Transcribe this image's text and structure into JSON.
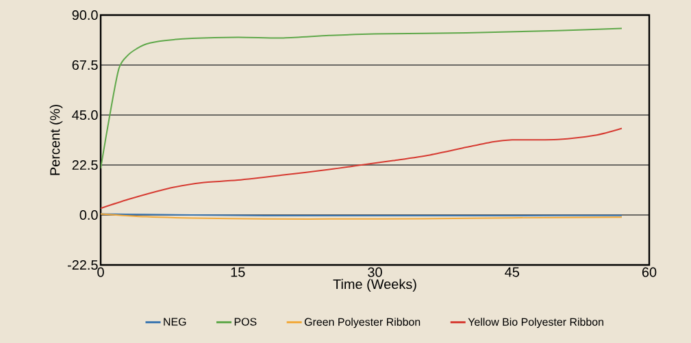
{
  "chart_data": {
    "type": "line",
    "xlabel": "Time (Weeks)",
    "ylabel": "Percent (%)",
    "xlim": [
      0,
      60
    ],
    "xticks": [
      0,
      15,
      30,
      45,
      60
    ],
    "ylim": [
      -22.5,
      90
    ],
    "yticks": [
      {
        "value": -22.5,
        "label": "-22.5"
      },
      {
        "value": 0,
        "label": "0.0"
      },
      {
        "value": 22.5,
        "label": "22.5"
      },
      {
        "value": 45,
        "label": "45.0"
      },
      {
        "value": 67.5,
        "label": "67.5"
      },
      {
        "value": 90,
        "label": "90.0"
      }
    ],
    "grid": "y",
    "legend": "bottom",
    "marker": "none",
    "line_style": "solid",
    "series": [
      {
        "name": "NEG",
        "color": "#3a75b0",
        "x": [
          0,
          5,
          10,
          18,
          25,
          35,
          45,
          57
        ],
        "values": [
          0.5,
          0.2,
          0,
          -0.3,
          -0.3,
          -0.3,
          -0.3,
          -0.2
        ]
      },
      {
        "name": "POS",
        "color": "#5fa84a",
        "x": [
          0,
          1,
          2,
          3,
          4,
          5,
          7,
          10,
          15,
          20,
          25,
          30,
          40,
          50,
          57
        ],
        "values": [
          21,
          45,
          66,
          72,
          75,
          77,
          78.5,
          79.5,
          80,
          79.7,
          80.8,
          81.5,
          82,
          83,
          84
        ]
      },
      {
        "name": "Green Polyester Ribbon",
        "color": "#f2a93a",
        "x": [
          0,
          5,
          10,
          18,
          25,
          35,
          45,
          57
        ],
        "values": [
          0.5,
          -0.8,
          -1.4,
          -1.8,
          -1.8,
          -1.7,
          -1.3,
          -1
        ]
      },
      {
        "name": "Yellow Bio Polyester Ribbon",
        "color": "#d63a31",
        "x": [
          0,
          3,
          6,
          8,
          11,
          15,
          20,
          25,
          28.5,
          32,
          36,
          40,
          43,
          45,
          50,
          54,
          57
        ],
        "values": [
          3,
          7,
          10.5,
          12.5,
          14.5,
          15.7,
          18,
          20.5,
          22.5,
          24.5,
          27,
          30.5,
          33,
          33.8,
          34,
          35.8,
          39
        ]
      }
    ]
  }
}
